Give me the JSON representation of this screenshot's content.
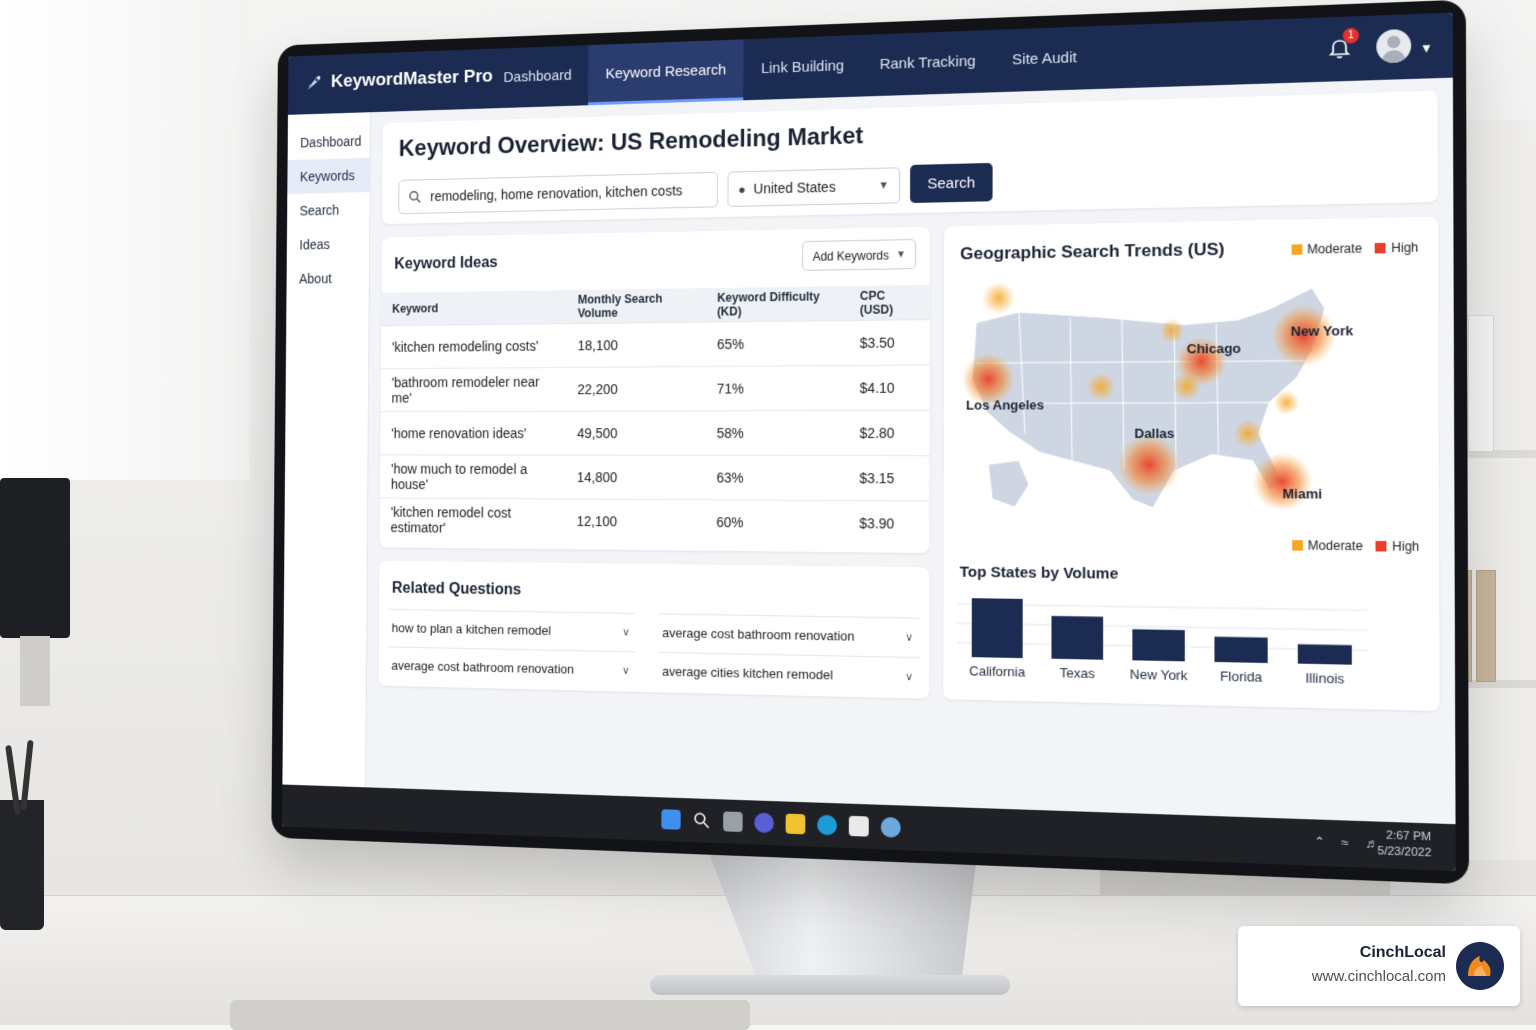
{
  "app": {
    "brand": "KeywordMaster Pro",
    "top_nav": [
      "Dashboard",
      "Keyword Research",
      "Link Building",
      "Rank Tracking",
      "Site Audit"
    ],
    "active_top_tab": "Keyword Research",
    "notification_count": "1"
  },
  "sidebar": {
    "items": [
      {
        "label": "Dashboard"
      },
      {
        "label": "Keywords",
        "active": true
      },
      {
        "label": "Search"
      },
      {
        "label": "Ideas"
      },
      {
        "label": "About"
      }
    ]
  },
  "header": {
    "title": "Keyword Overview: US Remodeling Market",
    "search_value": "remodeling, home renovation, kitchen costs",
    "location": "United States",
    "search_button": "Search"
  },
  "keyword_ideas": {
    "title": "Keyword Ideas",
    "add_button": "Add Keywords",
    "columns": [
      "Keyword",
      "Monthly Search Volume",
      "Keyword Difficulty (KD)",
      "CPC (USD)"
    ],
    "rows": [
      [
        "'kitchen remodeling costs'",
        "18,100",
        "65%",
        "$3.50"
      ],
      [
        "'bathroom remodeler near me'",
        "22,200",
        "71%",
        "$4.10"
      ],
      [
        "'home renovation ideas'",
        "49,500",
        "58%",
        "$2.80"
      ],
      [
        "'how much to remodel a house'",
        "14,800",
        "63%",
        "$3.15"
      ],
      [
        "'kitchen remodel cost estimator'",
        "12,100",
        "60%",
        "$3.90"
      ]
    ]
  },
  "related_questions": {
    "title": "Related Questions",
    "items": [
      "how to plan a kitchen remodel",
      "average cost bathroom renovation",
      "average cost bathroom renovation",
      "average cities kitchen remodel"
    ]
  },
  "geo": {
    "title": "Geographic Search Trends (US)",
    "legend": [
      {
        "label": "Moderate",
        "color": "#f5a623"
      },
      {
        "label": "High",
        "color": "#e8402a"
      }
    ],
    "cities": [
      "New York",
      "Chicago",
      "Los Angeles",
      "Dallas",
      "Miami"
    ]
  },
  "top_states": {
    "title": "Top States by Volume",
    "categories": [
      "California",
      "Texas",
      "New York",
      "Florida",
      "Illinois"
    ]
  },
  "chart_data": {
    "type": "bar",
    "title": "Top States by Volume",
    "categories": [
      "California",
      "Texas",
      "New York",
      "Florida",
      "Illinois"
    ],
    "values": [
      100,
      72,
      52,
      42,
      32
    ],
    "color": "#1b2b52"
  },
  "taskbar": {
    "time": "2:67 PM",
    "date": "5/23/2022"
  },
  "watermark": {
    "name": "CinchLocal",
    "url": "www.cinchlocal.com"
  }
}
